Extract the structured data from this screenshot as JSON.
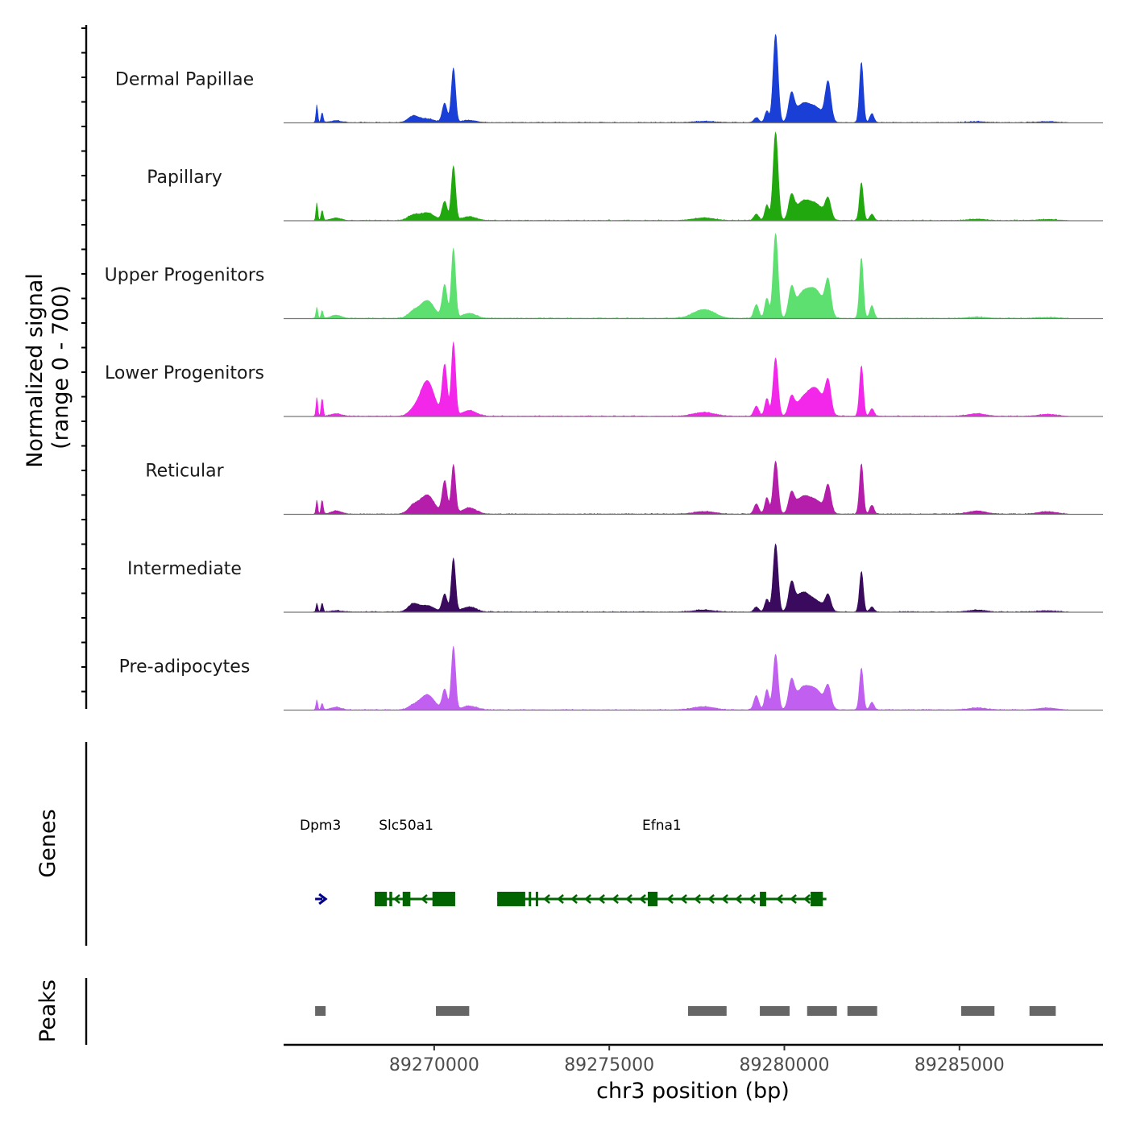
{
  "chart_data": {
    "type": "area",
    "y_axis_label": "Normalized signal",
    "y_axis_range_label": "(range 0 - 700)",
    "ylim": [
      0,
      700
    ],
    "xlabel": "chr3 position (bp)",
    "xlim": [
      89265700,
      89289100
    ],
    "x_ticks": [
      89270000,
      89275000,
      89280000,
      89285000
    ],
    "x_tick_labels": [
      "89270000",
      "89275000",
      "89280000",
      "89285000"
    ],
    "peak_template": {
      "positions": [
        89266650,
        89266800,
        89267200,
        89269400,
        89269800,
        89270300,
        89270550,
        89271000,
        89277700,
        89279200,
        89279500,
        89279750,
        89280200,
        89280500,
        89280900,
        89281250,
        89282200,
        89282500,
        89285500,
        89287500
      ],
      "widths": [
        25,
        30,
        150,
        150,
        200,
        70,
        60,
        200,
        300,
        70,
        60,
        70,
        80,
        200,
        220,
        80,
        55,
        60,
        250,
        250
      ]
    },
    "series": [
      {
        "name": "Dermal Papillae",
        "color": "#1a3fd6",
        "peak_heights": [
          140,
          80,
          15,
          50,
          30,
          150,
          430,
          18,
          10,
          40,
          90,
          700,
          200,
          130,
          110,
          300,
          480,
          70,
          8,
          8
        ]
      },
      {
        "name": "Papillary",
        "color": "#22a80f",
        "peak_heights": [
          140,
          80,
          20,
          40,
          60,
          150,
          430,
          30,
          20,
          50,
          120,
          700,
          170,
          130,
          120,
          150,
          300,
          50,
          10,
          8
        ]
      },
      {
        "name": "Upper Progenitors",
        "color": "#5de070",
        "peak_heights": [
          90,
          60,
          25,
          50,
          140,
          260,
          550,
          40,
          70,
          110,
          160,
          670,
          200,
          170,
          210,
          260,
          480,
          100,
          10,
          8
        ]
      },
      {
        "name": "Lower Progenitors",
        "color": "#f227ea",
        "peak_heights": [
          150,
          140,
          20,
          40,
          280,
          400,
          580,
          45,
          30,
          80,
          140,
          460,
          130,
          110,
          210,
          240,
          400,
          60,
          20,
          15
        ]
      },
      {
        "name": "Reticular",
        "color": "#b51eaa",
        "peak_heights": [
          110,
          110,
          25,
          60,
          150,
          260,
          390,
          50,
          20,
          80,
          130,
          420,
          140,
          120,
          100,
          210,
          400,
          70,
          25,
          20
        ]
      },
      {
        "name": "Intermediate",
        "color": "#3a0a5e",
        "peak_heights": [
          70,
          70,
          10,
          60,
          50,
          140,
          420,
          40,
          15,
          40,
          100,
          540,
          200,
          140,
          80,
          120,
          320,
          40,
          15,
          10
        ]
      },
      {
        "name": "Pre-adipocytes",
        "color": "#c05ff0",
        "peak_heights": [
          80,
          50,
          20,
          30,
          120,
          160,
          500,
          30,
          25,
          110,
          160,
          440,
          200,
          150,
          150,
          160,
          330,
          60,
          15,
          15
        ]
      }
    ],
    "genes": {
      "label": "Genes",
      "items": [
        {
          "name": "Dpm3",
          "strand": "+",
          "start": 89266600,
          "end": 89266900,
          "color": "#00008b",
          "exons": []
        },
        {
          "name": "Slc50a1",
          "strand": "-",
          "start": 89267800,
          "end": 89270600,
          "color": "#006400",
          "exons": [
            [
              89268300,
              89268650
            ],
            [
              89268720,
              89268800
            ],
            [
              89269100,
              89269320
            ],
            [
              89269950,
              89270600
            ]
          ]
        },
        {
          "name": "Efna1",
          "strand": "-",
          "start": 89271800,
          "end": 89281200,
          "color": "#006400",
          "exons": [
            [
              89271800,
              89272600
            ],
            [
              89272700,
              89272750
            ],
            [
              89272900,
              89272950
            ],
            [
              89276100,
              89276380
            ],
            [
              89279300,
              89279480
            ],
            [
              89280750,
              89281100
            ]
          ]
        }
      ]
    },
    "peaks": {
      "label": "Peaks",
      "color": "#666666",
      "regions": [
        [
          89266600,
          89266900
        ],
        [
          89270050,
          89271000
        ],
        [
          89277250,
          89278350
        ],
        [
          89279300,
          89280150
        ],
        [
          89280650,
          89281500
        ],
        [
          89281800,
          89282650
        ],
        [
          89285050,
          89286000
        ],
        [
          89287000,
          89287750
        ]
      ]
    }
  }
}
